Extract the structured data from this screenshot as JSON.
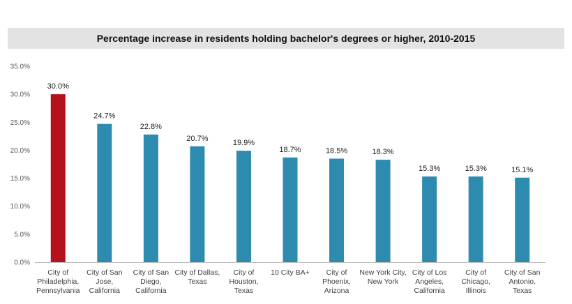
{
  "chart_data": {
    "type": "bar",
    "title": "Percentage increase in residents holding bachelor's degrees or higher, 2010-2015",
    "xlabel": "",
    "ylabel": "",
    "ylim": [
      0,
      35
    ],
    "yticks": [
      "0.0%",
      "5.0%",
      "10.0%",
      "15.0%",
      "20.0%",
      "25.0%",
      "30.0%",
      "35.0%"
    ],
    "grid": false,
    "categories": [
      [
        "City of",
        "Philadelphia,",
        "Pennsylvania"
      ],
      [
        "City of San",
        "Jose,",
        "California"
      ],
      [
        "City of San",
        "Diego,",
        "California"
      ],
      [
        "City of Dallas,",
        "Texas"
      ],
      [
        "City of",
        "Houston,",
        "Texas"
      ],
      [
        "10 City BA+"
      ],
      [
        "City of",
        "Phoenix,",
        "Arizona"
      ],
      [
        "New York City,",
        "New York"
      ],
      [
        "City of Los",
        "Angeles,",
        "California"
      ],
      [
        "City of",
        "Chicago,",
        "Illinois"
      ],
      [
        "City of San",
        "Antonio,",
        "Texas"
      ]
    ],
    "values": [
      30.0,
      24.7,
      22.8,
      20.7,
      19.9,
      18.7,
      18.5,
      18.3,
      15.3,
      15.3,
      15.1
    ],
    "data_labels": [
      "30.0%",
      "24.7%",
      "22.8%",
      "20.7%",
      "19.9%",
      "18.7%",
      "18.5%",
      "18.3%",
      "15.3%",
      "15.3%",
      "15.1%"
    ],
    "colors": {
      "highlight": "#b5121b",
      "default": "#2e8bb0",
      "axis": "#bfbfbf"
    },
    "highlight_index": 0
  }
}
